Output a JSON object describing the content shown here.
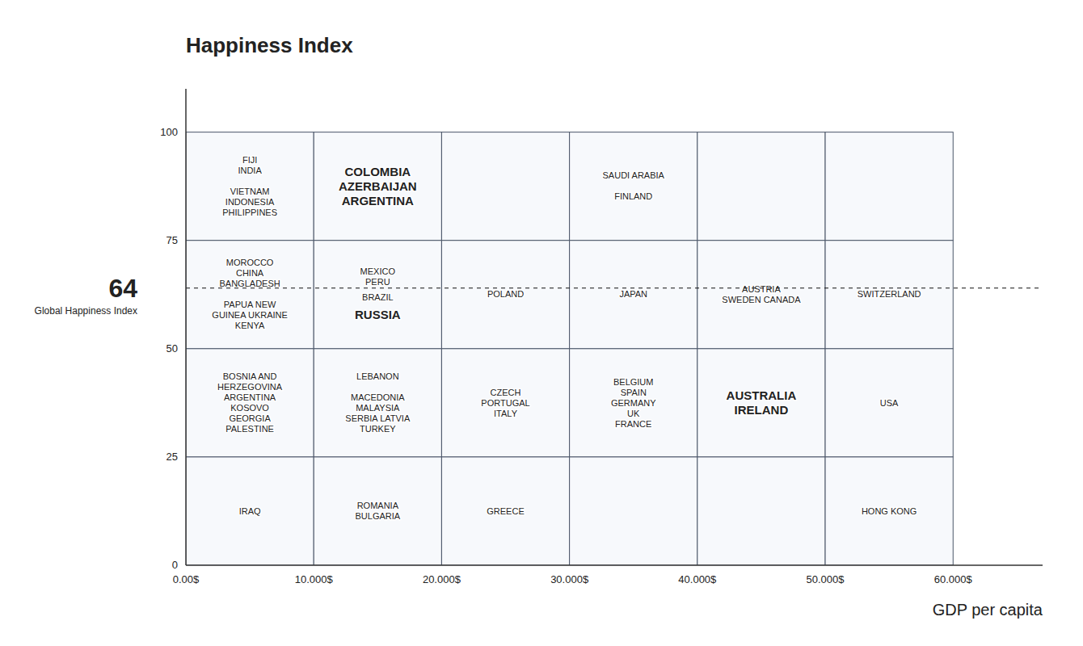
{
  "chart_data": {
    "type": "matrix",
    "title": "Happiness Index",
    "x_label": "GDP per capita",
    "xlim": [
      0,
      67000
    ],
    "ylim": [
      0,
      110
    ],
    "xticks": [
      {
        "value": 0,
        "label": "0.00$"
      },
      {
        "value": 10000,
        "label": "10.000$"
      },
      {
        "value": 20000,
        "label": "20.000$"
      },
      {
        "value": 30000,
        "label": "30.000$"
      },
      {
        "value": 40000,
        "label": "40.000$"
      },
      {
        "value": 50000,
        "label": "50.000$"
      },
      {
        "value": 60000,
        "label": "60.000$"
      }
    ],
    "yticks": [
      0,
      25,
      50,
      75,
      100
    ],
    "reference_lines": [
      {
        "value": 64,
        "label": "Global Happiness Index"
      }
    ],
    "cells": [
      {
        "x": [
          0,
          10000
        ],
        "y": [
          75,
          100
        ],
        "labels": [
          {
            "text": "FIJI\nINDIA\n\nVIETNAM\nINDONESIA\nPHILIPPINES"
          }
        ]
      },
      {
        "x": [
          10000,
          20000
        ],
        "y": [
          75,
          100
        ],
        "labels": [
          {
            "text": "COLOMBIA\nAZERBAIJAN\nARGENTINA",
            "bold": true
          }
        ]
      },
      {
        "x": [
          20000,
          30000
        ],
        "y": [
          75,
          100
        ],
        "labels": []
      },
      {
        "x": [
          30000,
          40000
        ],
        "y": [
          75,
          100
        ],
        "labels": [
          {
            "text": "SAUDI ARABIA\n\nFINLAND"
          }
        ]
      },
      {
        "x": [
          40000,
          50000
        ],
        "y": [
          75,
          100
        ],
        "labels": []
      },
      {
        "x": [
          50000,
          60000
        ],
        "y": [
          75,
          100
        ],
        "labels": []
      },
      {
        "x": [
          0,
          10000
        ],
        "y": [
          50,
          75
        ],
        "labels": [
          {
            "text": "MOROCCO\nCHINA\nBANGLADESH\n\nPAPUA NEW\nGUINEA UKRAINE\nKENYA"
          }
        ]
      },
      {
        "x": [
          10000,
          20000
        ],
        "y": [
          50,
          75
        ],
        "labels": [
          {
            "text": "MEXICO\nPERU"
          },
          {
            "text": "BRAZIL"
          },
          {
            "text": "RUSSIA",
            "bold": true
          }
        ]
      },
      {
        "x": [
          20000,
          30000
        ],
        "y": [
          50,
          75
        ],
        "labels": [
          {
            "text": "POLAND"
          }
        ]
      },
      {
        "x": [
          30000,
          40000
        ],
        "y": [
          50,
          75
        ],
        "labels": [
          {
            "text": "JAPAN"
          }
        ]
      },
      {
        "x": [
          40000,
          50000
        ],
        "y": [
          50,
          75
        ],
        "labels": [
          {
            "text": "AUSTRIA\nSWEDEN CANADA"
          }
        ]
      },
      {
        "x": [
          50000,
          60000
        ],
        "y": [
          50,
          75
        ],
        "labels": [
          {
            "text": "SWITZERLAND"
          }
        ]
      },
      {
        "x": [
          0,
          10000
        ],
        "y": [
          25,
          50
        ],
        "labels": [
          {
            "text": "BOSNIA AND\nHERZEGOVINA\nARGENTINA\nKOSOVO\nGEORGIA\nPALESTINE"
          }
        ]
      },
      {
        "x": [
          10000,
          20000
        ],
        "y": [
          25,
          50
        ],
        "labels": [
          {
            "text": "LEBANON\n\nMACEDONIA\nMALAYSIA\nSERBIA LATVIA\nTURKEY"
          }
        ]
      },
      {
        "x": [
          20000,
          30000
        ],
        "y": [
          25,
          50
        ],
        "labels": [
          {
            "text": "CZECH\nPORTUGAL\nITALY"
          }
        ]
      },
      {
        "x": [
          30000,
          40000
        ],
        "y": [
          25,
          50
        ],
        "labels": [
          {
            "text": "BELGIUM\nSPAIN\nGERMANY\nUK\nFRANCE"
          }
        ]
      },
      {
        "x": [
          40000,
          50000
        ],
        "y": [
          25,
          50
        ],
        "labels": [
          {
            "text": "AUSTRALIA\nIRELAND",
            "bold": true
          }
        ]
      },
      {
        "x": [
          50000,
          60000
        ],
        "y": [
          25,
          50
        ],
        "labels": [
          {
            "text": "USA"
          }
        ]
      },
      {
        "x": [
          0,
          10000
        ],
        "y": [
          0,
          25
        ],
        "labels": [
          {
            "text": "IRAQ"
          }
        ]
      },
      {
        "x": [
          10000,
          20000
        ],
        "y": [
          0,
          25
        ],
        "labels": [
          {
            "text": "ROMANIA\nBULGARIA"
          }
        ]
      },
      {
        "x": [
          20000,
          30000
        ],
        "y": [
          0,
          25
        ],
        "labels": [
          {
            "text": "GREECE"
          }
        ]
      },
      {
        "x": [
          30000,
          40000
        ],
        "y": [
          0,
          25
        ],
        "labels": []
      },
      {
        "x": [
          40000,
          50000
        ],
        "y": [
          0,
          25
        ],
        "labels": []
      },
      {
        "x": [
          50000,
          60000
        ],
        "y": [
          0,
          25
        ],
        "labels": [
          {
            "text": "HONG KONG"
          }
        ]
      }
    ]
  }
}
